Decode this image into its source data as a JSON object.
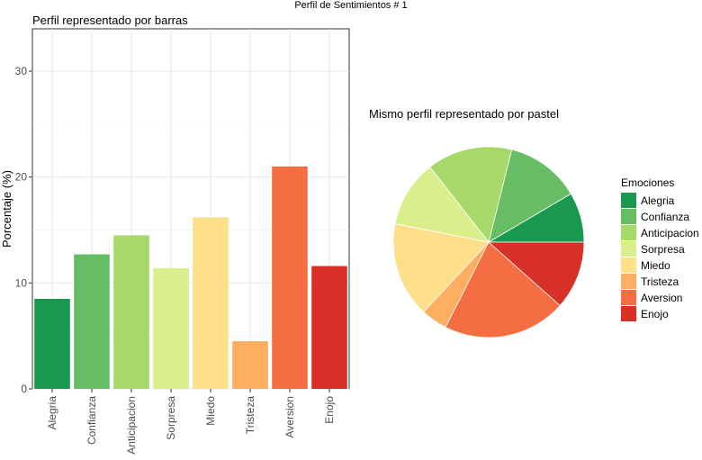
{
  "page_title": "Perfil de Sentimientos #  1",
  "chart_data": [
    {
      "type": "bar",
      "title": "Perfil representado por barras",
      "xlabel": "",
      "ylabel": "Porcentaje (%)",
      "ylim": [
        0,
        34
      ],
      "yticks": [
        0,
        10,
        20,
        30
      ],
      "grid": true,
      "categories": [
        "Alegria",
        "Confianza",
        "Anticipacion",
        "Sorpresa",
        "Miedo",
        "Tristeza",
        "Aversion",
        "Enojo"
      ],
      "values": [
        8.5,
        12.7,
        14.5,
        11.4,
        16.2,
        4.5,
        21.0,
        11.6
      ],
      "colors": [
        "#1a9850",
        "#66bd63",
        "#a6d96a",
        "#d9ef8b",
        "#fee08b",
        "#fdae61",
        "#f46d43",
        "#d73027"
      ]
    },
    {
      "type": "pie",
      "title": "Mismo perfil representado por pastel",
      "legend_title": "Emociones",
      "legend_position": "right",
      "categories": [
        "Alegria",
        "Confianza",
        "Anticipacion",
        "Sorpresa",
        "Miedo",
        "Tristeza",
        "Aversion",
        "Enojo"
      ],
      "values": [
        8.5,
        12.7,
        14.5,
        11.4,
        16.2,
        4.5,
        21.0,
        11.6
      ],
      "colors": [
        "#1a9850",
        "#66bd63",
        "#a6d96a",
        "#d9ef8b",
        "#fee08b",
        "#fdae61",
        "#f46d43",
        "#d73027"
      ]
    }
  ]
}
